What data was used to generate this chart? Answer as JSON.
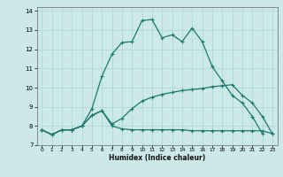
{
  "xlabel": "Humidex (Indice chaleur)",
  "bg_color": "#cce8e8",
  "line_color": "#1a7a6e",
  "grid_color": "#aad4d4",
  "xlim": [
    -0.5,
    23.5
  ],
  "ylim": [
    7,
    14.2
  ],
  "xticks": [
    0,
    1,
    2,
    3,
    4,
    5,
    6,
    7,
    8,
    9,
    10,
    11,
    12,
    13,
    14,
    15,
    16,
    17,
    18,
    19,
    20,
    21,
    22,
    23
  ],
  "yticks": [
    7,
    8,
    9,
    10,
    11,
    12,
    13,
    14
  ],
  "line1_x": [
    0,
    1,
    2,
    3,
    4,
    5,
    6,
    7,
    8,
    9,
    10,
    11,
    12,
    13,
    14,
    15,
    16,
    17,
    18,
    19,
    20,
    21,
    22,
    23
  ],
  "line1_y": [
    7.8,
    7.55,
    7.8,
    7.8,
    8.0,
    8.55,
    8.8,
    8.0,
    7.85,
    7.8,
    7.8,
    7.8,
    7.8,
    7.8,
    7.8,
    7.75,
    7.75,
    7.75,
    7.75,
    7.75,
    7.75,
    7.75,
    7.75,
    7.6
  ],
  "line2_x": [
    0,
    1,
    2,
    3,
    4,
    5,
    6,
    7,
    8,
    9,
    10,
    11,
    12,
    13,
    14,
    15,
    16,
    17,
    18,
    19,
    20,
    21,
    22,
    23
  ],
  "line2_y": [
    7.8,
    7.55,
    7.8,
    7.8,
    8.0,
    8.55,
    8.8,
    8.1,
    8.4,
    8.9,
    9.3,
    9.5,
    9.65,
    9.75,
    9.85,
    9.9,
    9.95,
    10.05,
    10.1,
    10.15,
    9.6,
    9.2,
    8.5,
    7.6
  ],
  "line3_x": [
    0,
    1,
    2,
    3,
    4,
    5,
    6,
    7,
    8,
    9,
    10,
    11,
    12,
    13,
    14,
    15,
    16,
    17,
    18,
    19,
    20,
    21,
    22
  ],
  "line3_y": [
    7.8,
    7.55,
    7.8,
    7.8,
    8.0,
    8.9,
    10.6,
    11.75,
    12.35,
    12.4,
    13.5,
    13.55,
    12.6,
    12.75,
    12.4,
    13.1,
    12.4,
    11.1,
    10.35,
    9.6,
    9.2,
    8.5,
    7.6
  ]
}
